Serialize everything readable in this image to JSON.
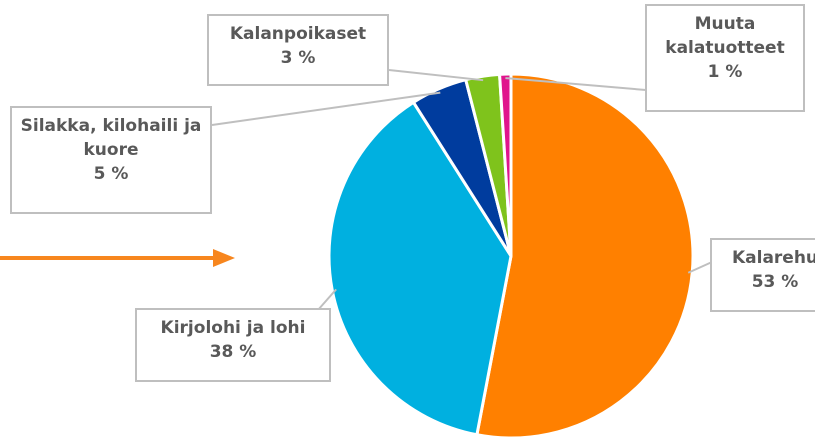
{
  "chart_data": {
    "type": "pie",
    "categories": [
      "Kalarehu",
      "Kirjolohi ja lohi",
      "Silakka, kilohaili ja kuore",
      "Kalanpoikaset",
      "Muuta kalatuotteet"
    ],
    "values": [
      53,
      38,
      5,
      3,
      1
    ],
    "value_labels": [
      "53 %",
      "38 %",
      "5 %",
      "3 %",
      "1 %"
    ],
    "colors": [
      "#ff8000",
      "#00b0e0",
      "#003c9e",
      "#7fc31c",
      "#e0148c"
    ]
  }
}
